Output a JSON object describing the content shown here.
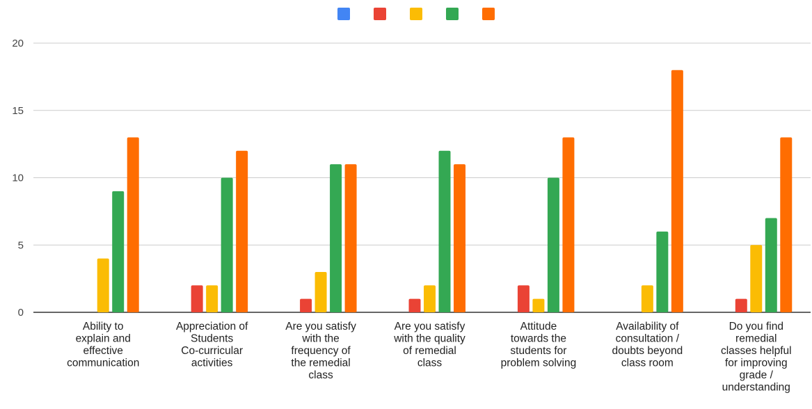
{
  "chart_data": {
    "type": "bar",
    "title": "",
    "xlabel": "",
    "ylabel": "",
    "ylim": [
      0,
      20
    ],
    "yticks": [
      0,
      5,
      10,
      15,
      20
    ],
    "grid": true,
    "legend": {
      "position": "top",
      "show_labels": false
    },
    "categories": [
      [
        "Ability to",
        "explain and",
        "effective",
        "communication"
      ],
      [
        "Appreciation of",
        "Students",
        "Co-curricular",
        "activities"
      ],
      [
        "Are you satisfy",
        "with the",
        "frequency of",
        "the remedial",
        "class"
      ],
      [
        "Are you satisfy",
        "with the quality",
        "of remedial",
        "class"
      ],
      [
        "Attitude",
        "towards the",
        "students for",
        "problem solving"
      ],
      [
        "Availability of",
        "consultation /",
        "doubts beyond",
        "class room"
      ],
      [
        "Do you find",
        "remedial",
        "classes helpful",
        "for improving",
        "grade /",
        "understanding"
      ]
    ],
    "series": [
      {
        "color": "#4285f4",
        "values": [
          0,
          0,
          0,
          0,
          0,
          0,
          0
        ]
      },
      {
        "color": "#ea4335",
        "values": [
          0,
          2,
          1,
          1,
          2,
          0,
          1
        ]
      },
      {
        "color": "#fbbc04",
        "values": [
          4,
          2,
          3,
          2,
          1,
          2,
          5
        ]
      },
      {
        "color": "#34a853",
        "values": [
          9,
          10,
          11,
          12,
          10,
          6,
          7
        ]
      },
      {
        "color": "#ff6d01",
        "values": [
          13,
          12,
          11,
          11,
          13,
          18,
          13
        ]
      }
    ]
  }
}
